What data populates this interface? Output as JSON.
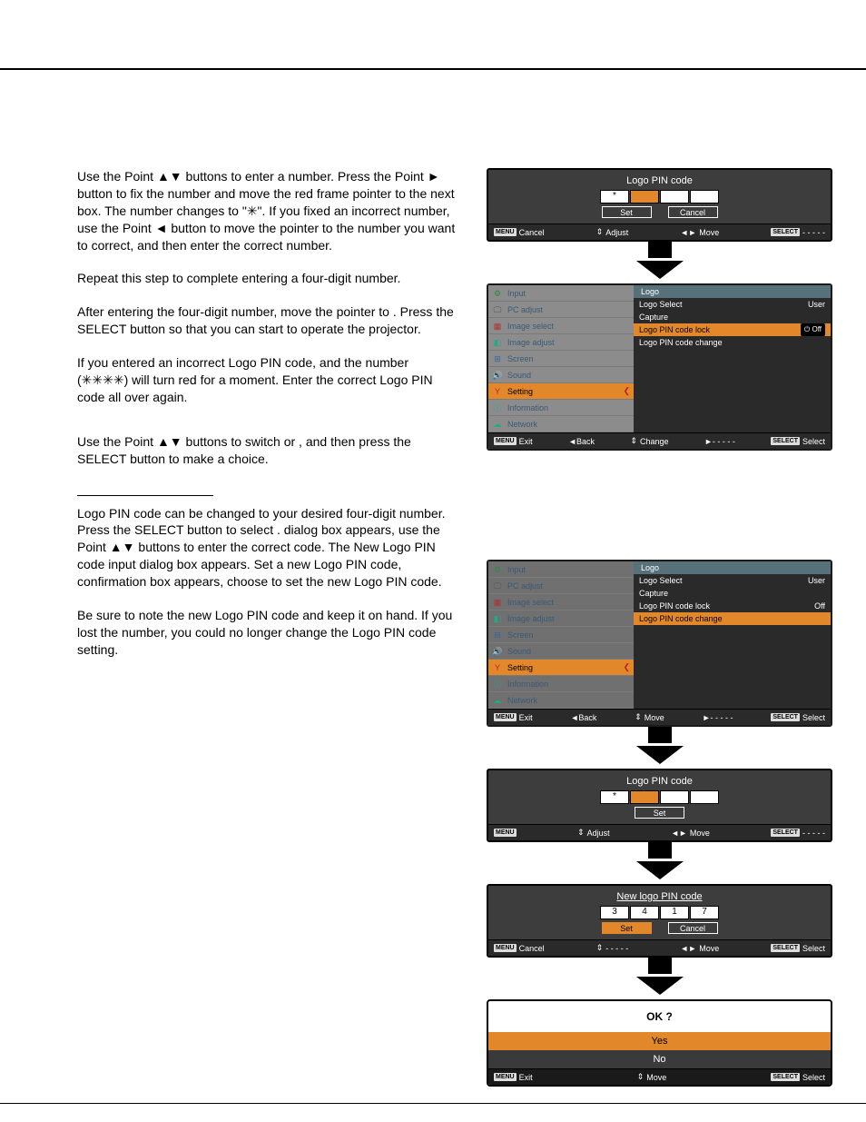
{
  "colors": {
    "highlight": "#e2882a",
    "panel_dark": "#2a2a2a",
    "panel_grey": "#8c8c8c",
    "menu_text": "#3a5a75"
  },
  "text": {
    "p1": "Use the Point ▲▼ buttons to enter a number. Press the Point ► button to fix the number and move the red frame pointer to the next box. The number changes to \"✳\". If you fixed an incorrect number, use the Point ◄ button to move the pointer to the number you want to correct, and then enter the correct number.",
    "p2": "Repeat this step to complete entering a four-digit number.",
    "p3": "After entering the four-digit number, move the pointer to      . Press the SELECT button so that you can start to operate the projector.",
    "p4": "If you entered an incorrect Logo PIN code,           and the number (✳✳✳✳) will turn red for a moment. Enter the correct Logo PIN code all over again.",
    "p5": "Use the Point ▲▼ buttons to switch        or     , and then press the SELECT button to make a choice.",
    "p6": "Logo PIN code can be changed to your desired four-digit number. Press the SELECT button to select                   .                       dialog box appears, use the Point ▲▼ buttons to enter the correct code. The New Logo PIN code input dialog box appears. Set a new Logo PIN code, confirmation box appears, choose        to set the new Logo PIN code.",
    "p7": "Be sure to note the new Logo PIN code and keep it on hand. If you lost the number, you could no longer change the Logo PIN code setting."
  },
  "pin1": {
    "title": "Logo PIN code",
    "cells": [
      "*",
      "",
      "",
      ""
    ],
    "selIndex": 1,
    "btn_set": "Set",
    "btn_cancel": "Cancel",
    "status": {
      "menu": "MENU",
      "cancel": "Cancel",
      "adjust": "Adjust",
      "move": "Move",
      "select": "SELECT",
      "dash": "- - - - -"
    }
  },
  "menu": {
    "header": "Logo",
    "items": [
      {
        "icon": "⚙",
        "label": "Input",
        "iconColor": "#2d8a3a"
      },
      {
        "icon": "🖵",
        "label": "PC adjust",
        "iconColor": "#555"
      },
      {
        "icon": "▦",
        "label": "Image select",
        "iconColor": "#b03030"
      },
      {
        "icon": "◧",
        "label": "Image adjust",
        "iconColor": "#2a8"
      },
      {
        "icon": "⊞",
        "label": "Screen",
        "iconColor": "#36a"
      },
      {
        "icon": "🔊",
        "label": "Sound",
        "iconColor": "#555"
      },
      {
        "icon": "Y",
        "label": "Setting",
        "iconColor": "#b22",
        "sel": true
      },
      {
        "icon": "ⓘ",
        "label": "Information",
        "iconColor": "#2a8"
      },
      {
        "icon": "☁",
        "label": "Network",
        "iconColor": "#2a8"
      }
    ],
    "right1": [
      {
        "label": "Logo Select",
        "val": "User"
      },
      {
        "label": "Capture",
        "val": ""
      },
      {
        "label": "Logo PIN code lock",
        "val": "Off",
        "sel": true,
        "pill": true
      },
      {
        "label": "Logo PIN code change",
        "val": ""
      }
    ],
    "right2": [
      {
        "label": "Logo Select",
        "val": "User"
      },
      {
        "label": "Capture",
        "val": ""
      },
      {
        "label": "Logo PIN code lock",
        "val": "Off"
      },
      {
        "label": "Logo PIN code change",
        "val": "",
        "sel": true
      }
    ],
    "status1": {
      "menu": "MENU",
      "exit": "Exit",
      "back": "◄Back",
      "change": "Change",
      "ptr": "►- - - - -",
      "select": "SELECT",
      "sel": "Select"
    },
    "status2": {
      "menu": "MENU",
      "exit": "Exit",
      "back": "◄Back",
      "change": "Move",
      "ptr": "►- - - - -",
      "select": "SELECT",
      "sel": "Select"
    }
  },
  "pin2": {
    "title": "Logo PIN code",
    "cells": [
      "*",
      "",
      "",
      ""
    ],
    "selIndex": 1,
    "btn_set": "Set",
    "status": {
      "menu": "MENU",
      "blank": "",
      "adjust": "Adjust",
      "move": "Move",
      "select": "SELECT",
      "dash": "- - - - -"
    }
  },
  "pin3": {
    "title": "New logo PIN code",
    "cells": [
      "3",
      "4",
      "1",
      "7"
    ],
    "selIndex": -1,
    "btn_set": "Set",
    "btn_cancel": "Cancel",
    "setSel": true,
    "status": {
      "menu": "MENU",
      "cancel": "Cancel",
      "adjust": "- - - - -",
      "move": "Move",
      "select": "SELECT",
      "sel": "Select"
    }
  },
  "ok": {
    "title": "OK ?",
    "yes": "Yes",
    "no": "No",
    "status": {
      "menu": "MENU",
      "exit": "Exit",
      "move": "Move",
      "select": "SELECT",
      "sel": "Select"
    }
  }
}
